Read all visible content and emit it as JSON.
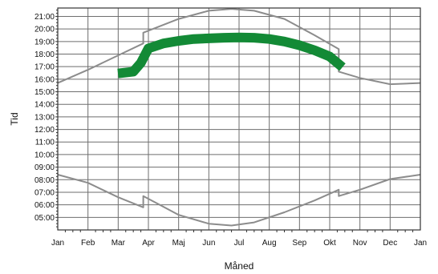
{
  "chart_data": {
    "type": "line",
    "xlabel": "Måned",
    "ylabel": "Tid",
    "grid": true,
    "legend": "none",
    "x_unit": "months since 1 Jan",
    "xlim": [
      0,
      12
    ],
    "ylim": [
      4.0,
      21.667
    ],
    "x_tick_labels": [
      "Jan",
      "Feb",
      "Mar",
      "Apr",
      "Maj",
      "Jun",
      "Jul",
      "Aug",
      "Sep",
      "Okt",
      "Nov",
      "Dec",
      "Jan"
    ],
    "y_tick_labels": [
      "05:00",
      "06:00",
      "07:00",
      "08:00",
      "09:00",
      "10:00",
      "11:00",
      "12:00",
      "13:00",
      "14:00",
      "15:00",
      "16:00",
      "17:00",
      "18:00",
      "19:00",
      "20:00",
      "21:00"
    ],
    "colors": {
      "curve": "#8c8c8c",
      "band": "#138a36",
      "grid": "#6e6e6e",
      "frame": "#333333"
    },
    "series": [
      {
        "x": [
          0.0,
          1.0,
          2.0,
          2.83,
          2.83,
          4.0,
          5.0,
          5.75,
          6.5,
          7.5,
          8.5,
          9.3,
          9.3,
          10.0,
          11.0,
          12.0
        ],
        "y": [
          15.7,
          16.75,
          17.9,
          18.85,
          19.7,
          20.8,
          21.45,
          21.6,
          21.45,
          20.8,
          19.5,
          18.4,
          16.6,
          16.1,
          15.6,
          15.7
        ]
      },
      {
        "x": [
          0.0,
          1.0,
          2.0,
          2.83,
          2.83,
          4.0,
          5.0,
          5.75,
          6.5,
          7.5,
          8.5,
          9.3,
          9.3,
          10.0,
          11.0,
          12.0
        ],
        "y": [
          8.4,
          7.75,
          6.6,
          5.8,
          6.7,
          5.2,
          4.5,
          4.35,
          4.6,
          5.4,
          6.35,
          7.2,
          6.7,
          7.2,
          8.05,
          8.4
        ]
      },
      {
        "x": [
          2.15,
          2.5,
          2.75,
          3.0,
          3.5,
          4.0,
          4.5,
          5.0,
          5.5,
          6.0,
          6.5,
          7.0,
          7.5,
          8.0,
          8.5,
          9.0,
          9.3
        ],
        "y": [
          16.5,
          16.6,
          17.3,
          18.45,
          18.85,
          19.05,
          19.2,
          19.25,
          19.3,
          19.32,
          19.3,
          19.2,
          19.0,
          18.7,
          18.3,
          17.8,
          17.2
        ]
      }
    ]
  }
}
